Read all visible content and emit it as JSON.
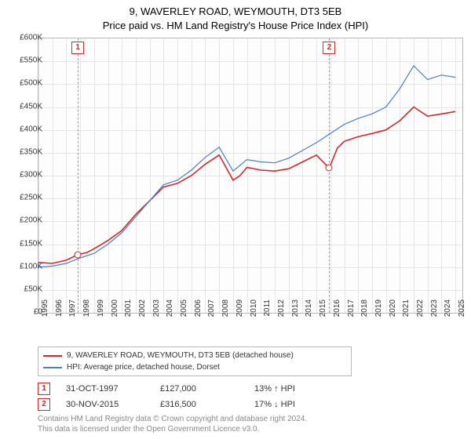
{
  "title_line1": "9, WAVERLEY ROAD, WEYMOUTH, DT3 5EB",
  "title_line2": "Price paid vs. HM Land Registry's House Price Index (HPI)",
  "chart": {
    "type": "line",
    "background_color": "#fdfdfd",
    "grid_color": "#e5e5e5",
    "border_color": "#b8b8b8",
    "x_years": [
      1995,
      1996,
      1997,
      1998,
      1999,
      2000,
      2001,
      2002,
      2003,
      2004,
      2005,
      2006,
      2007,
      2008,
      2009,
      2010,
      2011,
      2012,
      2013,
      2014,
      2015,
      2016,
      2017,
      2018,
      2019,
      2020,
      2021,
      2022,
      2023,
      2024,
      2025
    ],
    "xlim": [
      1995,
      2025.5
    ],
    "ylim": [
      0,
      600000
    ],
    "ytick_step": 50000,
    "ytick_labels": [
      "£0",
      "£50K",
      "£100K",
      "£150K",
      "£200K",
      "£250K",
      "£300K",
      "£350K",
      "£400K",
      "£450K",
      "£500K",
      "£550K",
      "£600K"
    ],
    "ytick_values": [
      0,
      50000,
      100000,
      150000,
      200000,
      250000,
      300000,
      350000,
      400000,
      450000,
      500000,
      550000,
      600000
    ],
    "tick_fontsize": 10,
    "tick_color": "#333333",
    "series": [
      {
        "name": "9, WAVERLEY ROAD, WEYMOUTH, DT3 5EB (detached house)",
        "color": "#d62728",
        "line_width": 1.6,
        "x": [
          1995,
          1996,
          1997,
          1997.83,
          1998.5,
          1999,
          2000,
          2001,
          2002,
          2003,
          2004,
          2005,
          2006,
          2007,
          2008,
          2009,
          2009.5,
          2010,
          2011,
          2012,
          2013,
          2014,
          2015,
          2015.92,
          2016.5,
          2017,
          2018,
          2019,
          2020,
          2021,
          2022,
          2023,
          2024,
          2025
        ],
        "y": [
          110000,
          108000,
          115000,
          127000,
          132000,
          140000,
          158000,
          180000,
          215000,
          245000,
          275000,
          283000,
          300000,
          325000,
          345000,
          290000,
          300000,
          318000,
          312000,
          310000,
          315000,
          330000,
          345000,
          316500,
          360000,
          375000,
          385000,
          392000,
          400000,
          420000,
          450000,
          430000,
          435000,
          440000
        ]
      },
      {
        "name": "HPI: Average price, detached house, Dorset",
        "color": "#4a7ec8",
        "line_width": 1.2,
        "x": [
          1995,
          1996,
          1997,
          1998,
          1999,
          2000,
          2001,
          2002,
          2003,
          2004,
          2005,
          2006,
          2007,
          2008,
          2009,
          2010,
          2011,
          2012,
          2013,
          2014,
          2015,
          2016,
          2017,
          2018,
          2019,
          2020,
          2021,
          2022,
          2023,
          2024,
          2025
        ],
        "y": [
          100000,
          102000,
          108000,
          120000,
          130000,
          150000,
          175000,
          210000,
          245000,
          280000,
          290000,
          312000,
          340000,
          362000,
          310000,
          335000,
          330000,
          328000,
          338000,
          355000,
          372000,
          392000,
          412000,
          425000,
          435000,
          450000,
          490000,
          540000,
          510000,
          520000,
          515000
        ]
      }
    ],
    "markers": [
      {
        "n": "1",
        "x": 1997.83,
        "y": 127000
      },
      {
        "n": "2",
        "x": 2015.92,
        "y": 316500
      }
    ]
  },
  "legend": {
    "border_color": "#b8b8b8",
    "items": [
      {
        "label": "9, WAVERLEY ROAD, WEYMOUTH, DT3 5EB (detached house)",
        "color": "#d62728"
      },
      {
        "label": "HPI: Average price, detached house, Dorset",
        "color": "#4a7ec8"
      }
    ]
  },
  "events": [
    {
      "n": "1",
      "date": "31-OCT-1997",
      "price": "£127,000",
      "delta": "13% ↑ HPI"
    },
    {
      "n": "2",
      "date": "30-NOV-2015",
      "price": "£316,500",
      "delta": "17% ↓ HPI"
    }
  ],
  "attribution_line1": "Contains HM Land Registry data © Crown copyright and database right 2024.",
  "attribution_line2": "This data is licensed under the Open Government Licence v3.0."
}
